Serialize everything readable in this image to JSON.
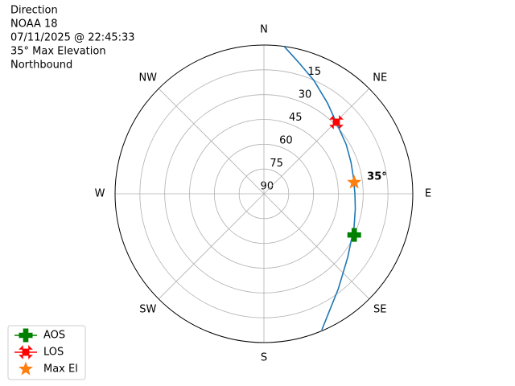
{
  "chart_data": {
    "type": "polar",
    "title_lines": [
      "Direction",
      "NOAA 18",
      "07/11/2025 @ 22:45:33",
      "35° Max Elevation",
      "Northbound"
    ],
    "xticks": [
      {
        "value": 0,
        "label": "N"
      },
      {
        "value": 45,
        "label": "NE"
      },
      {
        "value": 90,
        "label": "E"
      },
      {
        "value": 135,
        "label": "SE"
      },
      {
        "value": 180,
        "label": "S"
      },
      {
        "value": 225,
        "label": "SW"
      },
      {
        "value": 270,
        "label": "W"
      },
      {
        "value": 315,
        "label": "NW"
      }
    ],
    "rlim": [
      90,
      0
    ],
    "rticks": [
      15,
      30,
      45,
      60,
      75,
      90
    ],
    "grid": true,
    "track": {
      "color": "#1f77b4",
      "azimuth": [
        157,
        142,
        127,
        110,
        99.5,
        90,
        80,
        70,
        59,
        45,
        35,
        23.7,
        15,
        7.8
      ],
      "elevation": [
        0.5,
        17,
        26.5,
        32,
        34,
        35,
        35,
        34,
        32,
        28.4,
        23,
        15,
        8,
        0
      ]
    },
    "series": [
      {
        "name": "AOS",
        "color": "#008000",
        "marker": "plus",
        "azimuth": [
          114.5
        ],
        "elevation": [
          30
        ]
      },
      {
        "name": "LOS",
        "color": "#ff0000",
        "marker": "x",
        "azimuth": [
          45.3
        ],
        "elevation": [
          28.4
        ]
      },
      {
        "name": "Max El",
        "color": "#ff7f0e",
        "marker": "star",
        "azimuth": [
          82.8
        ],
        "elevation": [
          35
        ],
        "value_labels": [
          "35°"
        ]
      }
    ],
    "legend": "lower left"
  }
}
